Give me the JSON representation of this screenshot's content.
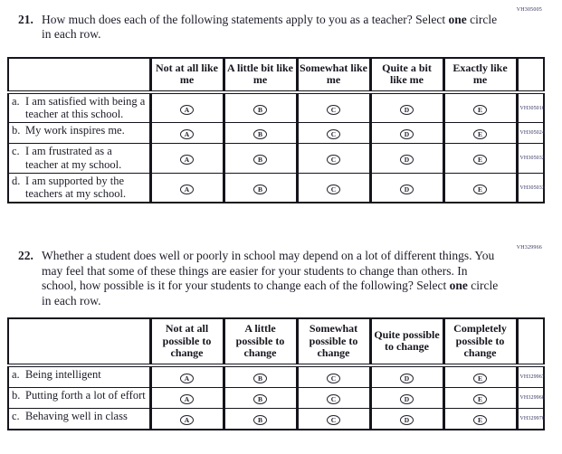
{
  "ink_color": "#1c1c28",
  "code_color": "#31315e",
  "bubble_letters": [
    "A",
    "B",
    "C",
    "D",
    "E"
  ],
  "questions": [
    {
      "number": "21.",
      "code": "VH305005",
      "segments": [
        {
          "t": "How much does each of the following statements apply to you as a teacher? Select "
        },
        {
          "t": "one",
          "b": true
        },
        {
          "t": " circle in each row."
        }
      ],
      "table": {
        "headers": [
          "Not at all like me",
          "A little bit like me",
          "Somewhat like me",
          "Quite a bit like me",
          "Exactly like me"
        ],
        "rows": [
          {
            "letter": "a.",
            "text": "I am satisfied with being a teacher at this school.",
            "code": "VH305016"
          },
          {
            "letter": "b.",
            "text": "My work inspires me.",
            "code": "VH305024"
          },
          {
            "letter": "c.",
            "text": "I am frustrated as a teacher at my school.",
            "code": "VH305032"
          },
          {
            "letter": "d.",
            "text": "I am supported by the teachers at my school.",
            "code": "VH305033"
          }
        ]
      }
    },
    {
      "number": "22.",
      "code": "VH329966",
      "segments": [
        {
          "t": "Whether a student does well or poorly in school may depend on a lot of different things. You may feel that some of these things are easier for your students to change than others. In school, how possible is it for your students to change each of the following? Select "
        },
        {
          "t": "one",
          "b": true
        },
        {
          "t": " circle in each row."
        }
      ],
      "table": {
        "headers": [
          "Not at all possible to change",
          "A little possible to change",
          "Somewhat possible to change",
          "Quite possible to change",
          "Completely possible to change"
        ],
        "rows": [
          {
            "letter": "a.",
            "text": "Being intelligent",
            "code": "VH329967"
          },
          {
            "letter": "b.",
            "text": "Putting forth a lot of effort",
            "code": "VH329968"
          },
          {
            "letter": "c.",
            "text": "Behaving well in class",
            "code": "VH329970"
          }
        ]
      }
    }
  ]
}
